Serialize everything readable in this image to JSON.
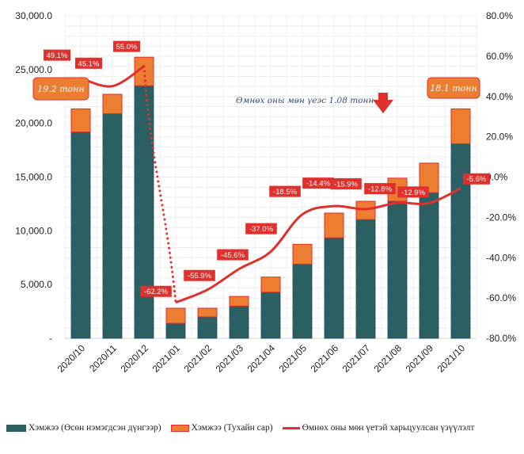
{
  "chart_data": {
    "type": "bar",
    "stacked": true,
    "categories": [
      "2020/10",
      "2020/11",
      "2020/12",
      "2021/01",
      "2021/02",
      "2021/03",
      "2021/04",
      "2021/05",
      "2021/06",
      "2021/07",
      "2021/08",
      "2021/09",
      "2021/10"
    ],
    "series": [
      {
        "name": "Хэмжээ (Өсөн нэмэгдсэн дүнгээр)",
        "type": "bar",
        "axis": "left",
        "color": "#2b5f62",
        "values": [
          19200,
          20900,
          23500,
          1400,
          2000,
          3000,
          4300,
          6900,
          9350,
          11050,
          12750,
          13550,
          18100
        ]
      },
      {
        "name": "Хэмжээ (Тухайн сар)",
        "type": "bar",
        "axis": "left",
        "color": "#ed7d31",
        "border": "#e0302c",
        "values": [
          2150,
          1800,
          2650,
          1400,
          800,
          900,
          1400,
          1850,
          2300,
          1700,
          2150,
          2750,
          3250
        ]
      },
      {
        "name": "Өмнөх оны мөн үетэй харьцуулсан үзүүлэлт",
        "type": "line",
        "axis": "right",
        "color": "#e0302c",
        "values": [
          49.1,
          45.1,
          55.0,
          -62.2,
          -55.9,
          -45.6,
          -37.0,
          -18.5,
          -14.4,
          -15.9,
          -12.8,
          -12.9,
          -5.6
        ],
        "labels": [
          "49.1%",
          "45.1%",
          "55.0%",
          "-62.2%",
          "-55.9%",
          "-45.6%",
          "-37.0%",
          "-18.5%",
          "-14.4%",
          "-15.9%",
          "-12.8%",
          "-12.9%",
          "-5.6%"
        ]
      }
    ],
    "y_left": {
      "ylim": [
        0,
        30000
      ],
      "ticks": [
        0,
        5000,
        10000,
        15000,
        20000,
        25000,
        30000
      ],
      "tick_labels": [
        "-",
        "5,000.0",
        "10,000.0",
        "15,000.0",
        "20,000.0",
        "25,000.0",
        "30,000.0"
      ]
    },
    "y_right": {
      "ylim": [
        -80,
        80
      ],
      "ticks": [
        -80,
        -60,
        -40,
        -20,
        0,
        20,
        40,
        60,
        80
      ],
      "tick_labels": [
        "-80.0%",
        "-60.0%",
        "-40.0%",
        "-20.0%",
        "0.0%",
        "20.0%",
        "40.0%",
        "60.0%",
        "80.0%"
      ]
    },
    "grid": true,
    "legend_position": "bottom",
    "annotations": {
      "first_callout": "19.2 тонн",
      "last_callout": "18.1 тонн",
      "note": "Өмнөх оны мөн үеэс 1.08 тонн"
    }
  },
  "legend": {
    "items": [
      "Хэмжээ (Өсөн нэмэгдсэн дүнгээр)",
      "Хэмжээ (Тухайн сар)",
      "Өмнөх оны мөн үетэй харьцуулсан үзүүлэлт"
    ]
  },
  "colors": {
    "teal": "#2b5f62",
    "orange": "#ed7d31",
    "red": "#e0302c",
    "grid": "#ececec"
  }
}
